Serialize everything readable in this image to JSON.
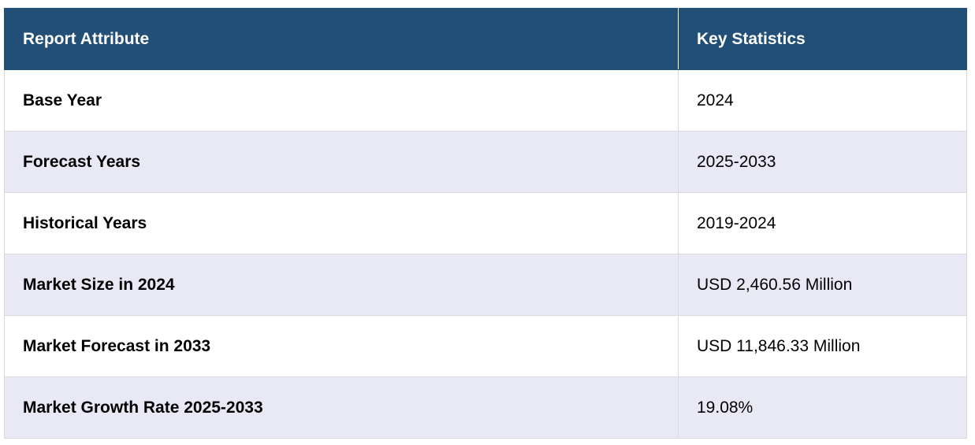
{
  "table": {
    "header": [
      "Report Attribute",
      "Key Statistics"
    ],
    "rows": [
      [
        "Base Year",
        "2024"
      ],
      [
        "Forecast Years",
        "2025-2033"
      ],
      [
        "Historical Years",
        "2019-2024"
      ],
      [
        "Market Size in 2024",
        "USD 2,460.56 Million"
      ],
      [
        "Market Forecast in 2033",
        "USD 11,846.33 Million"
      ],
      [
        "Market Growth Rate 2025-2033",
        "19.08%"
      ]
    ]
  }
}
